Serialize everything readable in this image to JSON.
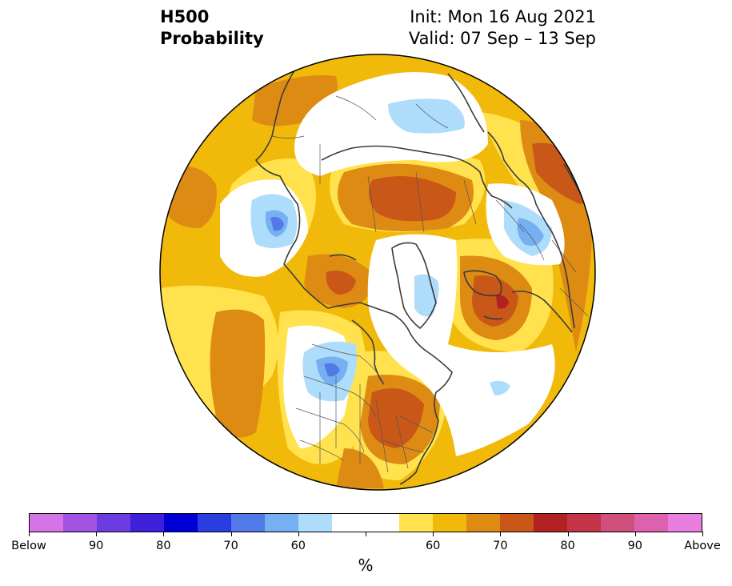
{
  "title": {
    "left_line1": "H500",
    "left_line2": "Probability",
    "right_line1": "Init: Mon 16 Aug 2021",
    "right_line2": "Valid: 07 Sep – 13 Sep"
  },
  "map": {
    "projection": "north-polar-stereographic",
    "field": "500 hPa height tercile probability",
    "background_color": "#ffffff"
  },
  "colorbar": {
    "unit_label": "%",
    "segments": [
      {
        "color": "#d474e6",
        "class": "below"
      },
      {
        "color": "#a154e0",
        "class": "below"
      },
      {
        "color": "#6b3ce0",
        "class": "below"
      },
      {
        "color": "#3f1fd9",
        "class": "below"
      },
      {
        "color": "#0000d6",
        "class": "below"
      },
      {
        "color": "#2a3ddf",
        "class": "below"
      },
      {
        "color": "#5179e8",
        "class": "below"
      },
      {
        "color": "#76b0f2",
        "class": "below"
      },
      {
        "color": "#aedcfb",
        "class": "below"
      },
      {
        "color": "#ffffff",
        "class": "neutral"
      },
      {
        "color": "#ffffff",
        "class": "neutral"
      },
      {
        "color": "#ffe24d",
        "class": "above"
      },
      {
        "color": "#f1b90a",
        "class": "above"
      },
      {
        "color": "#de8b13",
        "class": "above"
      },
      {
        "color": "#c85718",
        "class": "above"
      },
      {
        "color": "#b22222",
        "class": "above"
      },
      {
        "color": "#c33449",
        "class": "above"
      },
      {
        "color": "#d14f7c",
        "class": "above"
      },
      {
        "color": "#dc62ad",
        "class": "above"
      },
      {
        "color": "#e97ee0",
        "class": "above"
      }
    ],
    "tick_labels": [
      "Below",
      "90",
      "80",
      "70",
      "60",
      "60",
      "70",
      "80",
      "90",
      "Above"
    ]
  },
  "chart_data": {
    "type": "heatmap",
    "variable": "H500 Probability",
    "unit": "%",
    "categories": [
      "Below",
      "Above"
    ],
    "regions": [
      {
        "category": "above",
        "color_level": "#c85718",
        "description": "Siberia / Arctic Russia max"
      },
      {
        "category": "above",
        "color_level": "#b22222",
        "description": "North Atlantic near Iceland max"
      },
      {
        "category": "above",
        "color_level": "#c85718",
        "description": "Eastern North America"
      },
      {
        "category": "below",
        "color_level": "#5179e8",
        "description": "Western Canada / Pacific NW"
      },
      {
        "category": "below",
        "color_level": "#5179e8",
        "description": "Northeast Asia"
      },
      {
        "category": "below",
        "color_level": "#5179e8",
        "description": "Eastern Europe"
      }
    ]
  }
}
